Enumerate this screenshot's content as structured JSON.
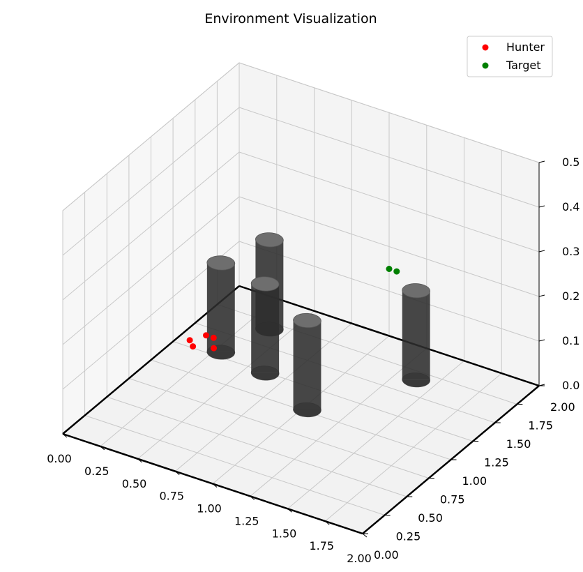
{
  "chart_data": {
    "type": "scatter",
    "projection": "3d",
    "title": "Environment Visualization",
    "xlabel": "",
    "ylabel": "",
    "zlabel": "",
    "xlim": [
      0,
      2
    ],
    "ylim": [
      0,
      2
    ],
    "zlim": [
      0,
      0.5
    ],
    "x_ticks": [
      "0.00",
      "0.25",
      "0.50",
      "0.75",
      "1.00",
      "1.25",
      "1.50",
      "1.75",
      "2.00"
    ],
    "y_ticks": [
      "0.00",
      "0.25",
      "0.50",
      "0.75",
      "1.00",
      "1.25",
      "1.50",
      "1.75",
      "2.00"
    ],
    "z_ticks": [
      "0.0",
      "0.1",
      "0.2",
      "0.3",
      "0.4",
      "0.5"
    ],
    "grid": true,
    "legend": {
      "position": "top-right",
      "entries": [
        {
          "label": "Hunter",
          "color": "#ff0000"
        },
        {
          "label": "Target",
          "color": "#008000"
        }
      ]
    },
    "series": [
      {
        "name": "Hunter",
        "color": "#ff0000",
        "points": [
          {
            "x": 0.2,
            "y": 1.1,
            "z": 0.05
          },
          {
            "x": 0.25,
            "y": 1.05,
            "z": 0.05
          },
          {
            "x": 0.25,
            "y": 1.2,
            "z": 0.05
          },
          {
            "x": 0.3,
            "y": 1.2,
            "z": 0.05
          },
          {
            "x": 0.36,
            "y": 1.1,
            "z": 0.05
          }
        ]
      },
      {
        "name": "Target",
        "color": "#008000",
        "points": [
          {
            "x": 1.0,
            "y": 2.0,
            "z": 0.15
          },
          {
            "x": 1.05,
            "y": 2.0,
            "z": 0.15
          }
        ]
      }
    ],
    "obstacles": {
      "shape": "cylinder",
      "color": "#333333",
      "items": [
        {
          "cx": 0.29,
          "cy": 1.3,
          "radius": 0.08,
          "height": 0.2
        },
        {
          "cx": 0.39,
          "cy": 1.68,
          "radius": 0.08,
          "height": 0.2
        },
        {
          "cx": 0.62,
          "cy": 1.24,
          "radius": 0.08,
          "height": 0.2
        },
        {
          "cx": 1.03,
          "cy": 1.02,
          "radius": 0.08,
          "height": 0.2
        },
        {
          "cx": 1.38,
          "cy": 1.66,
          "radius": 0.08,
          "height": 0.2
        }
      ]
    }
  }
}
